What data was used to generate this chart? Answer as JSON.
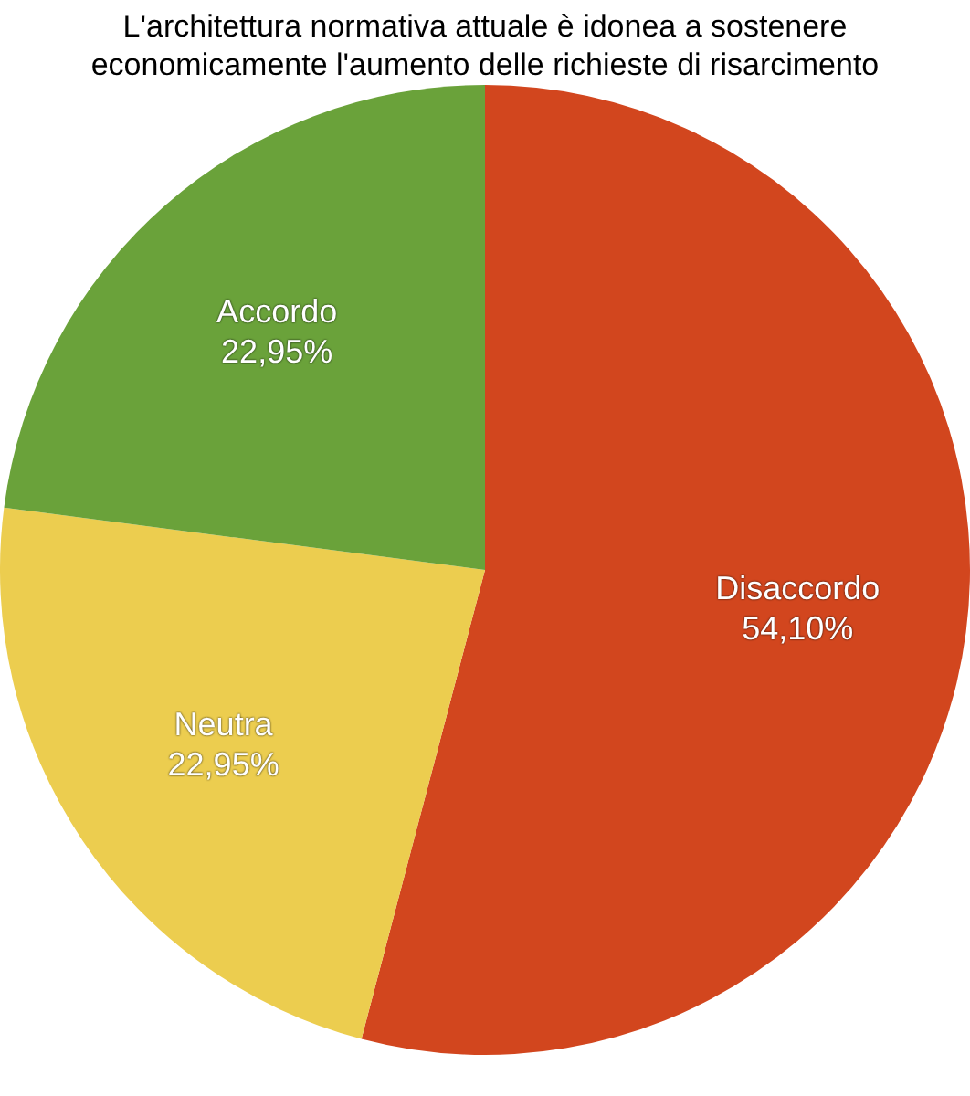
{
  "chart_data": {
    "type": "pie",
    "title": "L'architettura normativa attuale è idonea a sostenere economicamente l'aumento delle richieste di risarcimento",
    "categories": [
      "Disaccordo",
      "Neutra",
      "Accordo"
    ],
    "values": [
      54.1,
      22.95,
      22.95
    ],
    "colors": [
      "#d2461e",
      "#eccd4f",
      "#6aa23a"
    ],
    "value_labels": [
      "54,10%",
      "22,95%",
      "22,95%"
    ],
    "legend": false
  }
}
